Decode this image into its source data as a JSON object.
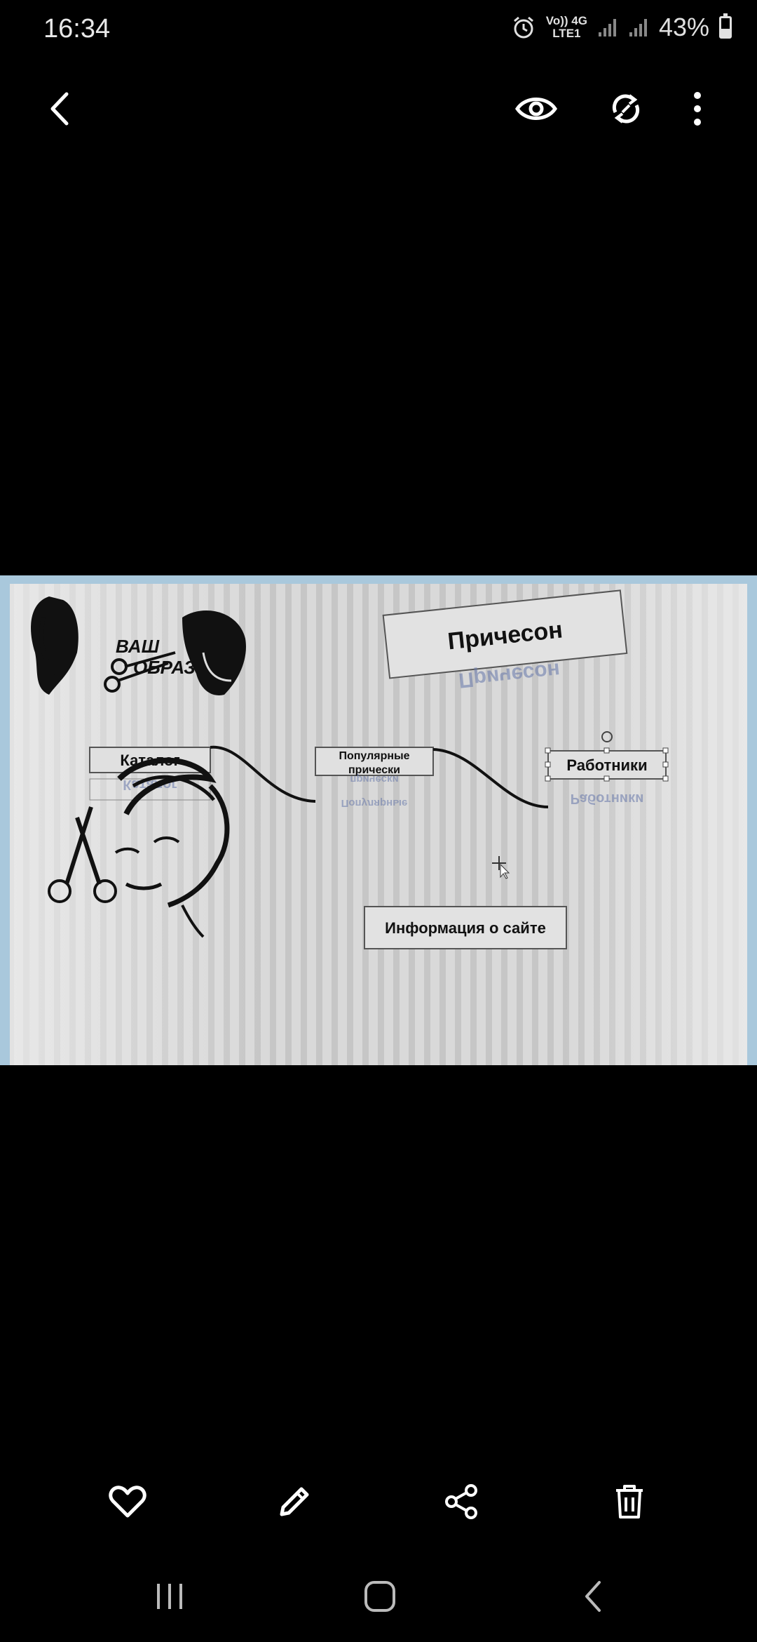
{
  "status": {
    "time": "16:34",
    "network_top": "Vo)) 4G",
    "network_bottom": "LTE1",
    "battery_percent": "43%",
    "battery_level": 0.43
  },
  "toolbar": {
    "back_icon": "arrow-left-icon",
    "view_icon": "eye-icon",
    "rotate_icon": "rotate-icon",
    "more_icon": "more-vertical-icon"
  },
  "photo": {
    "logo_line1": "ВАШ",
    "logo_line2": "ОБРАЗ",
    "title": "Причесон",
    "title_reflection": "Причесон",
    "nav_catalog": "Каталог",
    "nav_popular_line1": "Популярные",
    "nav_popular_line2": "прически",
    "nav_workers": "Работники",
    "info_button": "Информация о сайте",
    "reflect_catalog": "Каталог",
    "reflect_popular": "Популярные",
    "reflect_popular_2": "прически",
    "reflect_workers": "Работники"
  },
  "actions": {
    "favorite_icon": "heart-icon",
    "edit_icon": "pencil-icon",
    "share_icon": "share-icon",
    "delete_icon": "trash-icon"
  },
  "navigation": {
    "recents_icon": "recent-apps-icon",
    "home_icon": "home-icon",
    "back_icon": "back-chevron-icon"
  }
}
